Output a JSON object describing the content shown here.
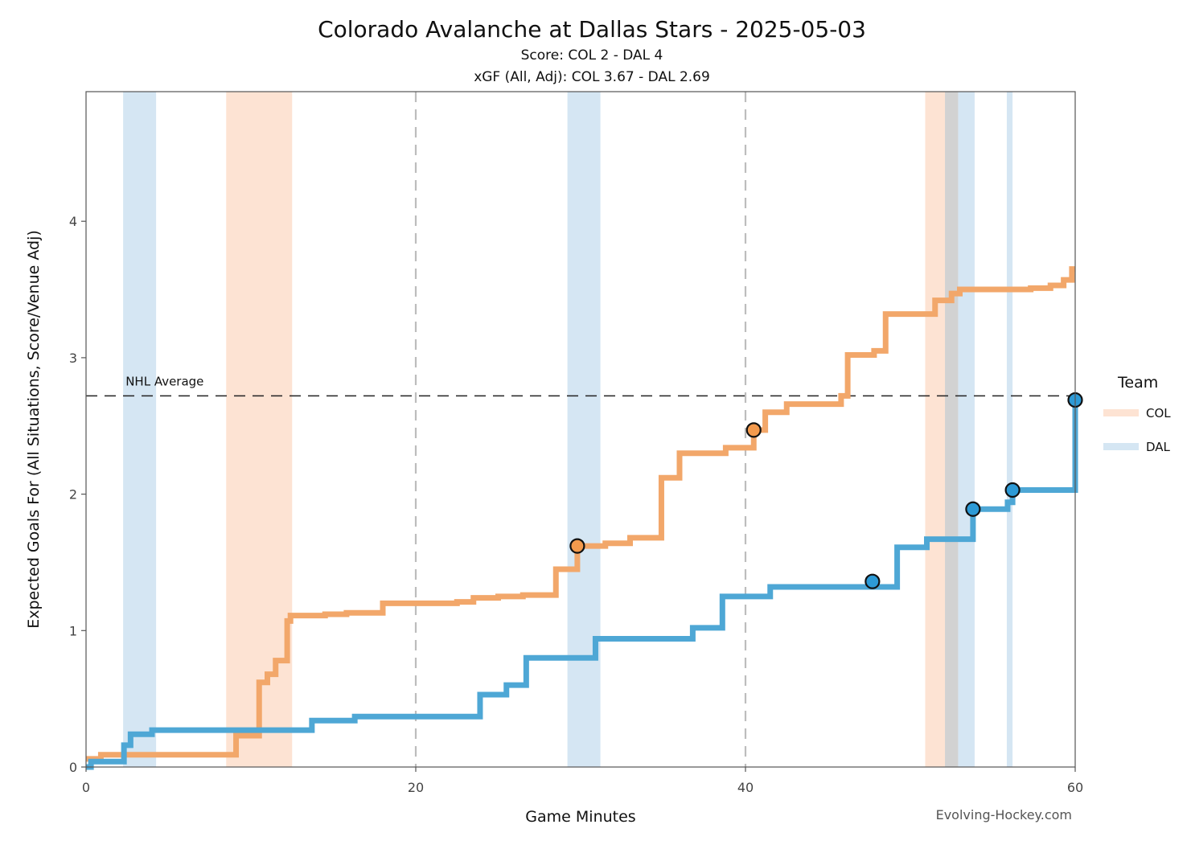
{
  "chart_data": {
    "type": "line",
    "title": "Colorado Avalanche at Dallas Stars - 2025-05-03",
    "subtitle_score": "Score: COL 2 - DAL 4",
    "subtitle_xgf": "xGF (All, Adj): COL 3.67 - DAL 2.69",
    "xlabel": "Game Minutes",
    "ylabel": "Expected Goals For (All Situations, Score/Venue Adj)",
    "xlim": [
      0,
      60
    ],
    "ylim": [
      0,
      4.95
    ],
    "x_ticks": [
      0,
      20,
      40,
      60
    ],
    "y_ticks": [
      0,
      1,
      2,
      3,
      4
    ],
    "period_lines": [
      20,
      40
    ],
    "reference_line": {
      "label": "NHL Average",
      "value": 2.72
    },
    "legend": {
      "title": "Team",
      "placement": "right",
      "entries": [
        "COL",
        "DAL"
      ]
    },
    "credit": "Evolving-Hockey.com",
    "colors": {
      "COL": "#f2a76a",
      "DAL": "#4ea7d5",
      "COL_band": "#fde3d3",
      "DAL_band": "#d5e6f3",
      "overlap_band": "#d2d2d2",
      "goal_COL": "#f39a4d",
      "goal_DAL": "#2d9ad6"
    },
    "bands": [
      {
        "team": "DAL",
        "start": 2.25,
        "end": 4.25
      },
      {
        "team": "COL",
        "start": 8.5,
        "end": 12.5
      },
      {
        "team": "DAL",
        "start": 29.2,
        "end": 31.2
      },
      {
        "team": "COL",
        "start": 50.9,
        "end": 52.1
      },
      {
        "team": "overlap",
        "start": 52.1,
        "end": 52.9
      },
      {
        "team": "DAL",
        "start": 52.9,
        "end": 53.9
      },
      {
        "team": "DAL",
        "start": 55.85,
        "end": 56.2
      }
    ],
    "series": [
      {
        "name": "COL",
        "x": [
          0,
          0.9,
          9.1,
          10.5,
          11.0,
          11.5,
          12.2,
          12.4,
          14.5,
          15.8,
          18.0,
          22.5,
          23.5,
          25.0,
          26.5,
          28.5,
          29.8,
          31.5,
          33.0,
          34.9,
          36.0,
          38.8,
          40.5,
          41.2,
          42.5,
          45.8,
          46.2,
          47.8,
          48.5,
          51.5,
          52.5,
          53.0,
          57.3,
          58.5,
          59.3,
          59.8,
          60.0
        ],
        "values": [
          0.06,
          0.09,
          0.23,
          0.62,
          0.68,
          0.78,
          1.07,
          1.11,
          1.12,
          1.13,
          1.2,
          1.21,
          1.24,
          1.25,
          1.26,
          1.45,
          1.62,
          1.64,
          1.68,
          2.12,
          2.3,
          2.34,
          2.47,
          2.6,
          2.66,
          2.72,
          3.02,
          3.05,
          3.32,
          3.42,
          3.47,
          3.5,
          3.51,
          3.53,
          3.57,
          3.65,
          3.65
        ]
      },
      {
        "name": "DAL",
        "x": [
          0,
          0.3,
          2.3,
          2.7,
          4.0,
          13.7,
          16.3,
          23.9,
          25.5,
          26.7,
          30.9,
          36.8,
          38.6,
          40.0,
          41.5,
          49.2,
          51.0,
          53.8,
          55.9,
          56.2,
          60.0,
          60.0
        ],
        "values": [
          0.0,
          0.04,
          0.16,
          0.24,
          0.27,
          0.34,
          0.37,
          0.53,
          0.6,
          0.8,
          0.94,
          1.02,
          1.25,
          1.25,
          1.32,
          1.61,
          1.67,
          1.89,
          1.94,
          2.03,
          2.03,
          2.69
        ]
      }
    ],
    "goals": [
      {
        "team": "COL",
        "x": 29.8,
        "y": 1.62
      },
      {
        "team": "COL",
        "x": 40.5,
        "y": 2.47
      },
      {
        "team": "DAL",
        "x": 47.7,
        "y": 1.36
      },
      {
        "team": "DAL",
        "x": 53.8,
        "y": 1.89
      },
      {
        "team": "DAL",
        "x": 56.2,
        "y": 2.03
      },
      {
        "team": "DAL",
        "x": 60.0,
        "y": 2.69
      }
    ]
  }
}
